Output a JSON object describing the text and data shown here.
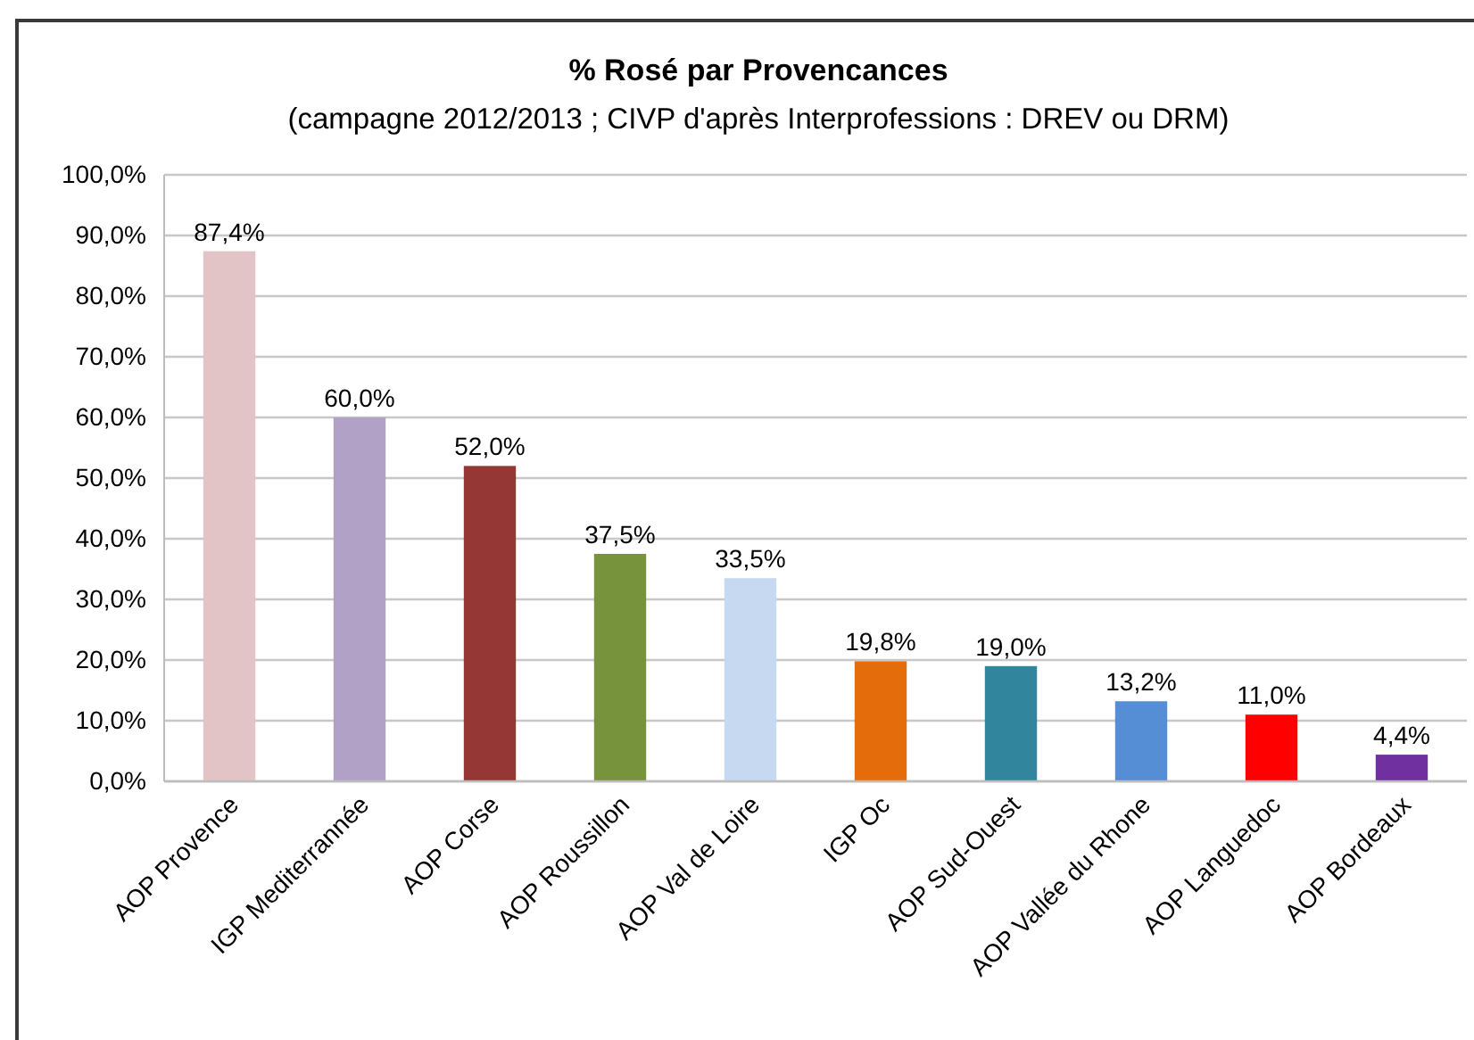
{
  "chart_data": {
    "type": "bar",
    "title": "% Rosé par Provencances",
    "subtitle": "(campagne 2012/2013 ; CIVP d'après Interprofessions : DREV ou DRM)",
    "categories": [
      "AOP Provence",
      "IGP Mediterrannée",
      "AOP Corse",
      "AOP Roussillon",
      "AOP Val de Loire",
      "IGP Oc",
      "AOP Sud-Ouest",
      "AOP Vallée du Rhone",
      "AOP Languedoc",
      "AOP Bordeaux"
    ],
    "values": [
      87.4,
      60.0,
      52.0,
      37.5,
      33.5,
      19.8,
      19.0,
      13.2,
      11.0,
      4.4
    ],
    "colors": [
      "#e3c4c6",
      "#b1a1c7",
      "#953735",
      "#77933c",
      "#c6d9f1",
      "#e46c0a",
      "#31859c",
      "#558ed5",
      "#ff0000",
      "#7030a0"
    ],
    "value_labels": [
      "87,4%",
      "60,0%",
      "52,0%",
      "37,5%",
      "33,5%",
      "19,8%",
      "19,0%",
      "13,2%",
      "11,0%",
      "4,4%"
    ],
    "ylim": [
      0,
      100
    ],
    "yticks": [
      {
        "value": 0,
        "label": "0,0%"
      },
      {
        "value": 10,
        "label": "10,0%"
      },
      {
        "value": 20,
        "label": "20,0%"
      },
      {
        "value": 30,
        "label": "30,0%"
      },
      {
        "value": 40,
        "label": "40,0%"
      },
      {
        "value": 50,
        "label": "50,0%"
      },
      {
        "value": 60,
        "label": "60,0%"
      },
      {
        "value": 70,
        "label": "70,0%"
      },
      {
        "value": 80,
        "label": "80,0%"
      },
      {
        "value": 90,
        "label": "90,0%"
      },
      {
        "value": 100,
        "label": "100,0%"
      }
    ],
    "grid": "y"
  }
}
